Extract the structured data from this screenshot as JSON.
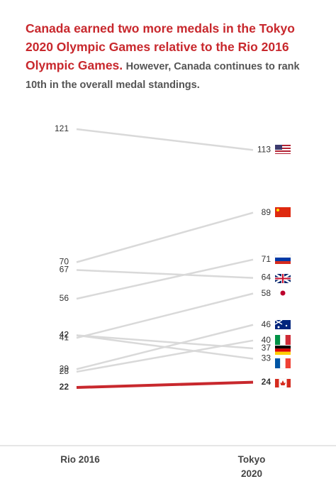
{
  "chart_data": {
    "type": "slope",
    "title": "Canada earned two more medals in the Tokyo 2020 Olympic Games relative to the Rio 2016 Olympic Games.",
    "subtitle": "However, Canada continues to rank 10th in the overall medal standings.",
    "categories": [
      "Rio 2016",
      "Tokyo 2020"
    ],
    "series": [
      {
        "color": "#d9d9d9",
        "values": [
          121,
          113
        ]
      },
      {
        "color": "#d9d9d9",
        "values": [
          70,
          89
        ]
      },
      {
        "color": "#d9d9d9",
        "values": [
          56,
          71
        ]
      },
      {
        "color": "#d9d9d9",
        "values": [
          67,
          64
        ]
      },
      {
        "color": "#d9d9d9",
        "values": [
          41,
          58
        ]
      },
      {
        "color": "#d9d9d9",
        "values": [
          29,
          46
        ]
      },
      {
        "color": "#d9d9d9",
        "values": [
          28,
          40
        ]
      },
      {
        "color": "#d9d9d9",
        "values": [
          42,
          37
        ]
      },
      {
        "color": "#d9d9d9",
        "values": [
          42,
          33
        ]
      },
      {
        "color": "#c8282d",
        "values": [
          22,
          24
        ],
        "emphasis": true
      }
    ]
  }
}
